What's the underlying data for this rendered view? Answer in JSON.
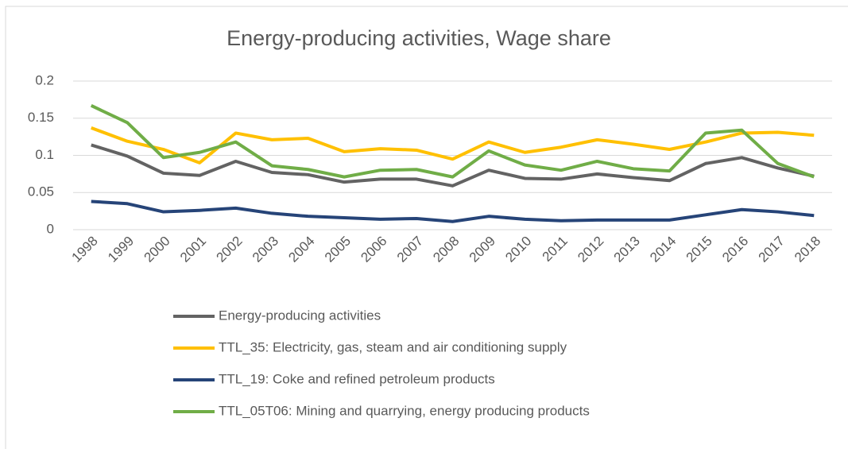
{
  "chart_data": {
    "type": "line",
    "title": "Energy-producing activities, Wage share",
    "categories": [
      "1998",
      "1999",
      "2000",
      "2001",
      "2002",
      "2003",
      "2004",
      "2005",
      "2006",
      "2007",
      "2008",
      "2009",
      "2010",
      "2011",
      "2012",
      "2013",
      "2014",
      "2015",
      "2016",
      "2017",
      "2018"
    ],
    "series": [
      {
        "name": "Energy-producing activities",
        "color": "#636363",
        "values": [
          0.114,
          0.099,
          0.076,
          0.073,
          0.092,
          0.077,
          0.074,
          0.064,
          0.068,
          0.068,
          0.059,
          0.08,
          0.069,
          0.068,
          0.075,
          0.07,
          0.066,
          0.089,
          0.097,
          0.083,
          0.072
        ]
      },
      {
        "name": "TTL_35: Electricity, gas, steam and air conditioning supply",
        "color": "#ffc000",
        "values": [
          0.137,
          0.119,
          0.108,
          0.09,
          0.13,
          0.121,
          0.123,
          0.105,
          0.109,
          0.107,
          0.095,
          0.118,
          0.104,
          0.111,
          0.121,
          0.115,
          0.108,
          0.118,
          0.13,
          0.131,
          0.127
        ]
      },
      {
        "name": "TTL_19: Coke and refined petroleum products",
        "color": "#264478",
        "values": [
          0.038,
          0.035,
          0.024,
          0.026,
          0.029,
          0.022,
          0.018,
          0.016,
          0.014,
          0.015,
          0.011,
          0.018,
          0.014,
          0.012,
          0.013,
          0.013,
          0.013,
          0.02,
          0.027,
          0.024,
          0.019
        ]
      },
      {
        "name": "TTL_05T06: Mining and quarrying, energy producing products",
        "color": "#70ad47",
        "values": [
          0.167,
          0.144,
          0.097,
          0.104,
          0.118,
          0.086,
          0.081,
          0.071,
          0.08,
          0.081,
          0.071,
          0.106,
          0.087,
          0.08,
          0.092,
          0.082,
          0.079,
          0.13,
          0.134,
          0.089,
          0.071
        ]
      }
    ],
    "ylim": [
      0,
      0.2
    ],
    "yticks": [
      0,
      0.05,
      0.1,
      0.15,
      0.2
    ],
    "grid": true,
    "legend": "bottom"
  }
}
